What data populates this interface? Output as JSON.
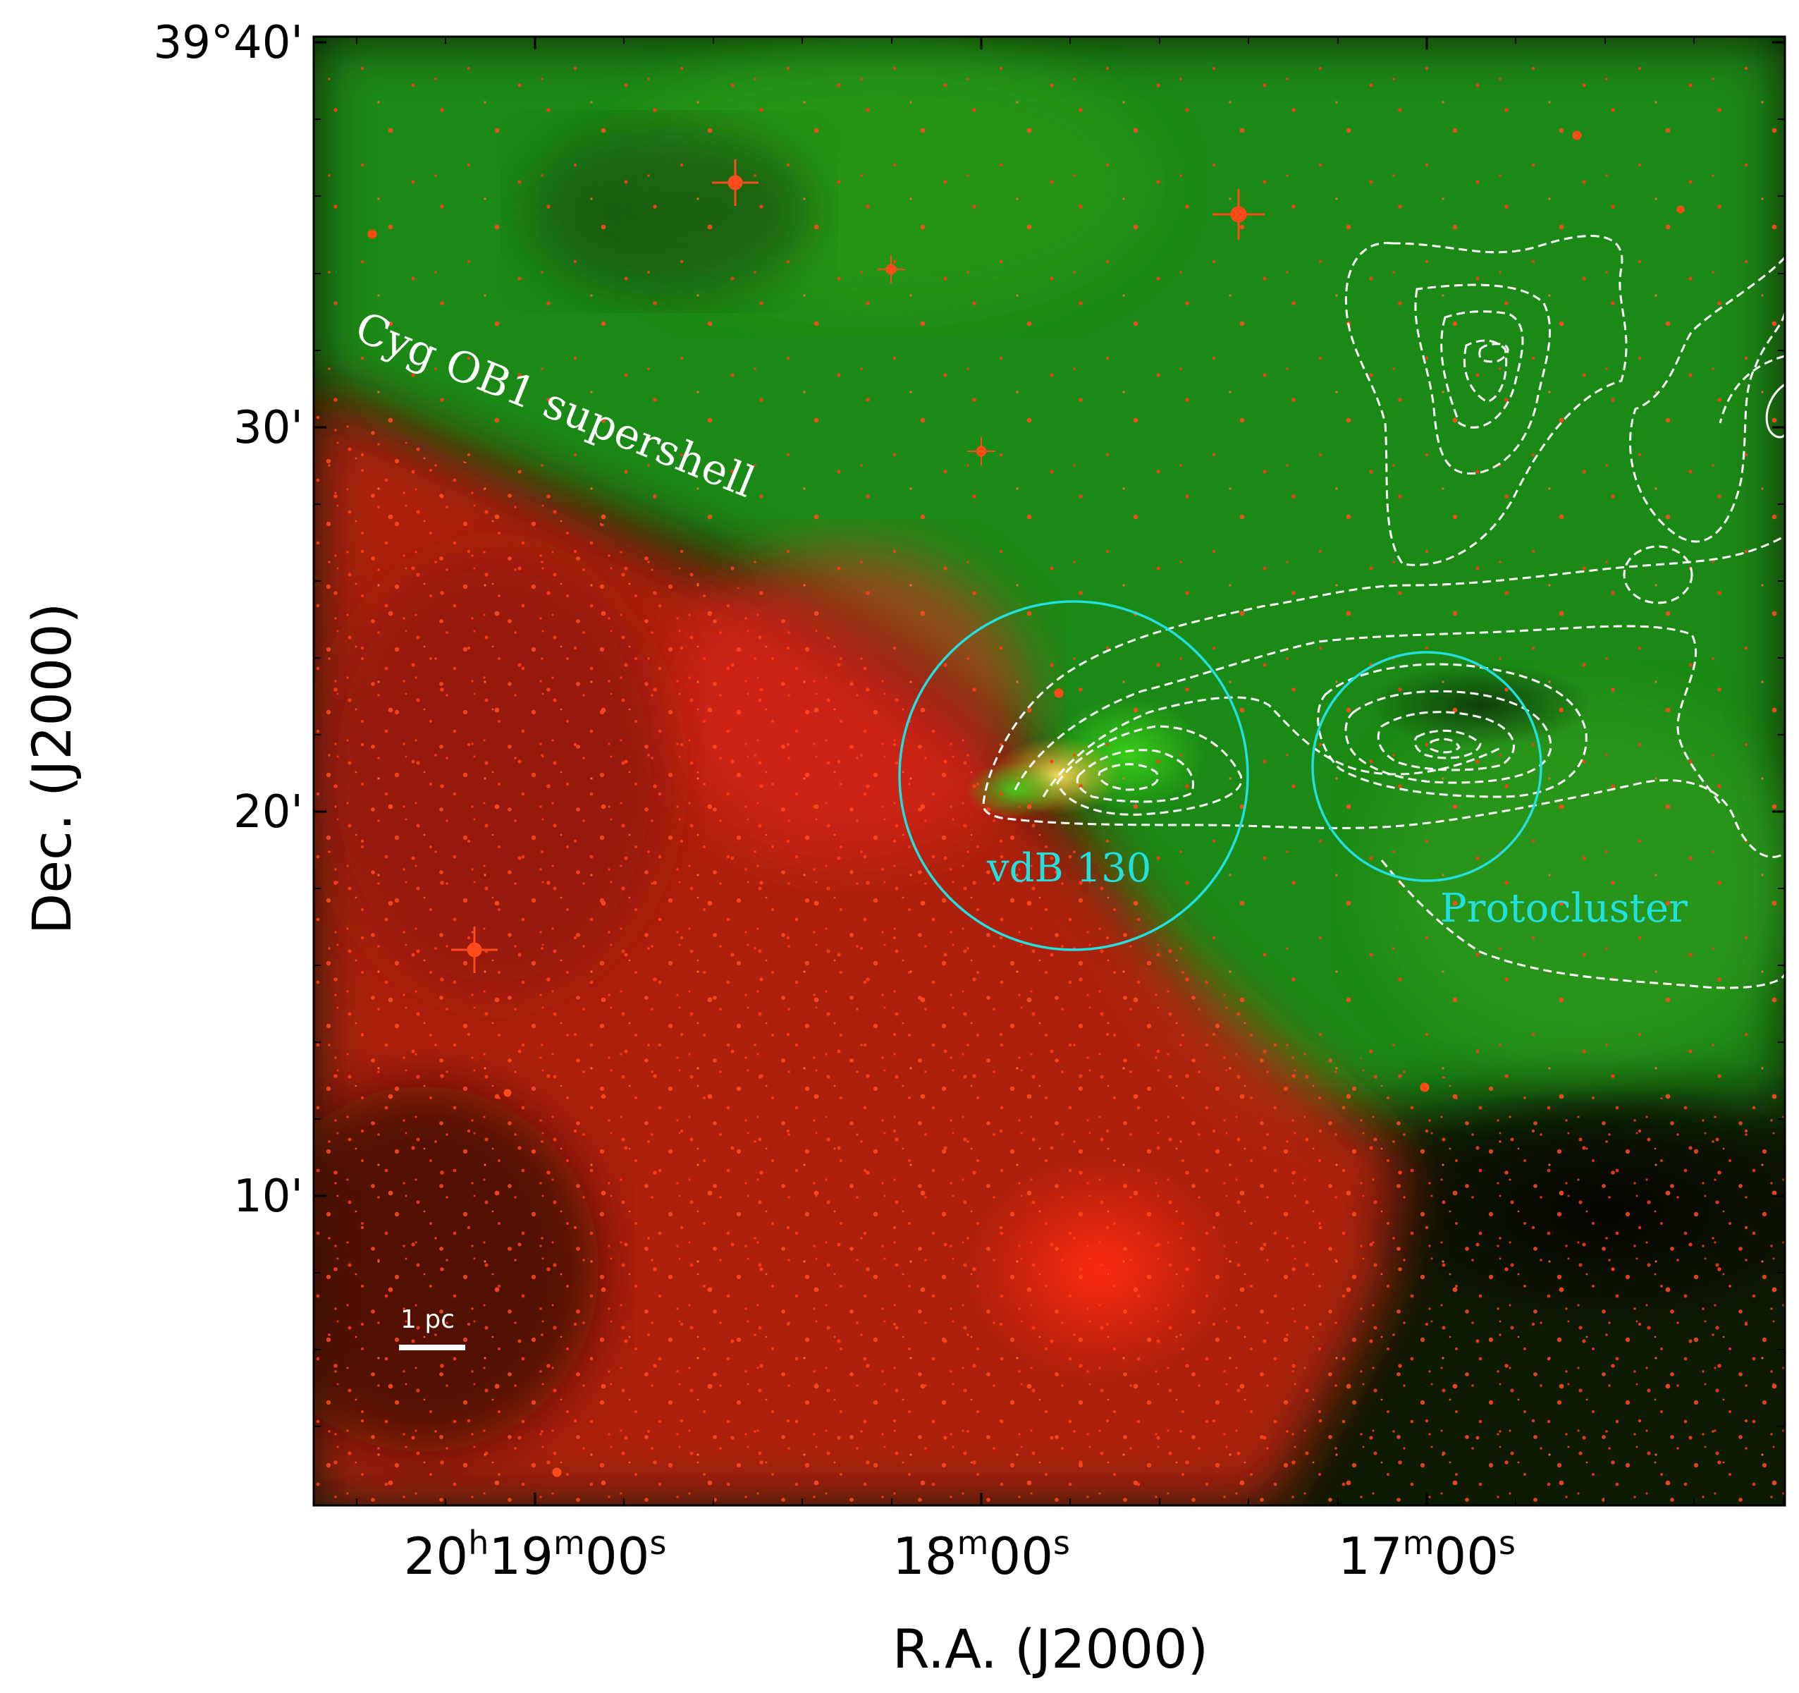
{
  "figure": {
    "x_axis_label": "R.A. (J2000)",
    "y_axis_label": "Dec. (J2000)",
    "y_ticks": [
      {
        "label": "39°40'"
      },
      {
        "label": "30'"
      },
      {
        "label": "20'"
      },
      {
        "label": "10'"
      }
    ],
    "x_ticks": [
      {
        "parts": [
          [
            "20",
            ""
          ],
          [
            "h",
            "sup"
          ],
          [
            "19",
            ""
          ],
          [
            "m",
            "sup"
          ],
          [
            "00",
            ""
          ],
          [
            "s",
            "sup"
          ]
        ]
      },
      {
        "parts": [
          [
            "18",
            ""
          ],
          [
            "m",
            "sup"
          ],
          [
            "00",
            ""
          ],
          [
            "s",
            "sup"
          ]
        ]
      },
      {
        "parts": [
          [
            "17",
            ""
          ],
          [
            "m",
            "sup"
          ],
          [
            "00",
            ""
          ],
          [
            "s",
            "sup"
          ]
        ]
      }
    ]
  },
  "annotations": {
    "supershell_label": "Cyg OB1 supershell",
    "vdb130_label": "vdB 130",
    "protocluster_label": "Protocluster",
    "scale_bar_label": "1 pc"
  },
  "colors": {
    "image_red_channel": "#ff2a10",
    "image_green_channel": "#1f8f12",
    "region_circle": "#22e0e0",
    "contour": "#ffffff"
  }
}
